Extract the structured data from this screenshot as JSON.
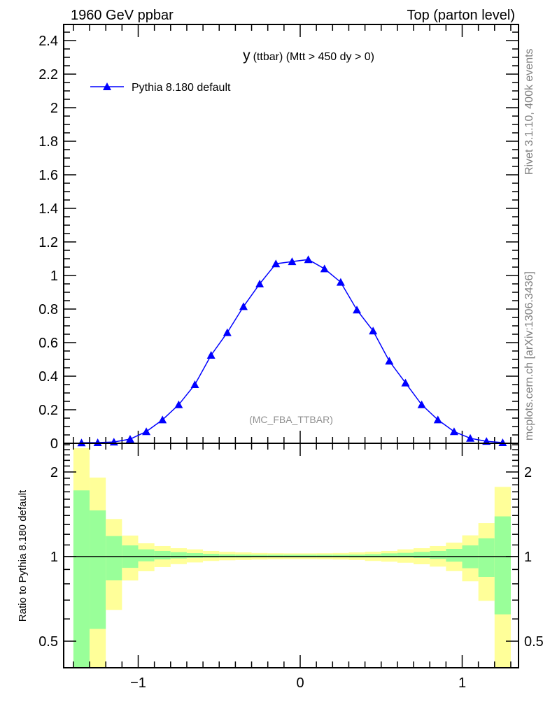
{
  "header": {
    "left": "1960 GeV ppbar",
    "right": "Top (parton level)"
  },
  "side_labels": {
    "rivet": "Rivet 3.1.10,  400k events",
    "mcplots": "mcplots.cern.ch [arXiv:1306.3436]"
  },
  "chart_data": [
    {
      "type": "line",
      "title_var": "y",
      "title_rest": "(ttbar) (Mtt > 450 dy > 0)",
      "analysis_label": "(MC_FBA_TTBAR)",
      "xlim": [
        -1.46,
        1.35
      ],
      "ylim": [
        0,
        2.5
      ],
      "y_ticks": [
        0,
        0.2,
        0.4,
        0.6,
        0.8,
        1,
        1.2,
        1.4,
        1.6,
        1.8,
        2,
        2.2,
        2.4
      ],
      "y_tick_labels": [
        "0",
        "0.2",
        "0.4",
        "0.6",
        "0.8",
        "1",
        "1.2",
        "1.4",
        "1.6",
        "1.8",
        "2",
        "2.2",
        "2.4"
      ],
      "legend": {
        "placement": "top-left",
        "entries": [
          "Pythia 8.180 default"
        ]
      },
      "series": [
        {
          "name": "Pythia 8.180 default",
          "color": "#0000ff",
          "marker": "triangle-up",
          "x": [
            -1.35,
            -1.25,
            -1.15,
            -1.05,
            -0.95,
            -0.85,
            -0.75,
            -0.65,
            -0.55,
            -0.45,
            -0.35,
            -0.25,
            -0.15,
            -0.05,
            0.05,
            0.15,
            0.25,
            0.35,
            0.45,
            0.55,
            0.65,
            0.75,
            0.85,
            0.95,
            1.05,
            1.15,
            1.25
          ],
          "y": [
            0.003,
            0.004,
            0.008,
            0.025,
            0.07,
            0.14,
            0.23,
            0.35,
            0.525,
            0.66,
            0.815,
            0.95,
            1.07,
            1.083,
            1.095,
            1.04,
            0.96,
            0.795,
            0.67,
            0.49,
            0.36,
            0.23,
            0.14,
            0.07,
            0.03,
            0.012,
            0.004
          ]
        }
      ]
    },
    {
      "type": "area",
      "ylabel": "Ratio to Pythia 8.180 default",
      "yscale": "log",
      "ylim": [
        0.4,
        2.53
      ],
      "xlim": [
        -1.46,
        1.35
      ],
      "x_ticks": [
        -1,
        0,
        1
      ],
      "x_tick_labels": [
        "−1",
        "0",
        "1"
      ],
      "y_ticks": [
        0.5,
        1,
        2
      ],
      "y_tick_labels": [
        "0.5",
        "1",
        "2"
      ],
      "bin_edges": [
        -1.4,
        -1.3,
        -1.2,
        -1.1,
        -1.0,
        -0.9,
        -0.8,
        -0.7,
        -0.6,
        -0.5,
        -0.4,
        -0.3,
        -0.2,
        -0.1,
        0.0,
        0.1,
        0.2,
        0.3,
        0.4,
        0.5,
        0.6,
        0.7,
        0.8,
        0.9,
        1.0,
        1.1,
        1.2,
        1.3
      ],
      "stat_band": {
        "color": "#99ff99",
        "upper": [
          1.72,
          1.46,
          1.183,
          1.096,
          1.061,
          1.047,
          1.037,
          1.029,
          1.023,
          1.018,
          1.016,
          1.015,
          1.015,
          1.015,
          1.015,
          1.015,
          1.015,
          1.016,
          1.02,
          1.027,
          1.031,
          1.039,
          1.047,
          1.065,
          1.096,
          1.161,
          1.39
        ],
        "lower": [
          0.3,
          0.553,
          0.823,
          0.912,
          0.962,
          0.977,
          0.985,
          0.99,
          0.992,
          0.993,
          0.993,
          0.994,
          0.994,
          0.994,
          0.994,
          0.994,
          0.994,
          0.993,
          0.993,
          0.993,
          0.993,
          0.989,
          0.981,
          0.959,
          0.909,
          0.847,
          0.623
        ]
      },
      "total_band": {
        "color": "#ffff99",
        "upper": [
          2.43,
          1.91,
          1.36,
          1.188,
          1.115,
          1.09,
          1.071,
          1.061,
          1.047,
          1.04,
          1.035,
          1.03,
          1.028,
          1.027,
          1.027,
          1.028,
          1.03,
          1.035,
          1.041,
          1.047,
          1.061,
          1.071,
          1.09,
          1.121,
          1.19,
          1.316,
          1.77
        ],
        "lower": [
          0.3,
          0.3,
          0.646,
          0.822,
          0.887,
          0.918,
          0.94,
          0.953,
          0.965,
          0.97,
          0.973,
          0.976,
          0.978,
          0.979,
          0.979,
          0.978,
          0.976,
          0.973,
          0.965,
          0.959,
          0.951,
          0.939,
          0.921,
          0.888,
          0.817,
          0.696,
          0.3
        ]
      },
      "reference_line": 1
    }
  ]
}
